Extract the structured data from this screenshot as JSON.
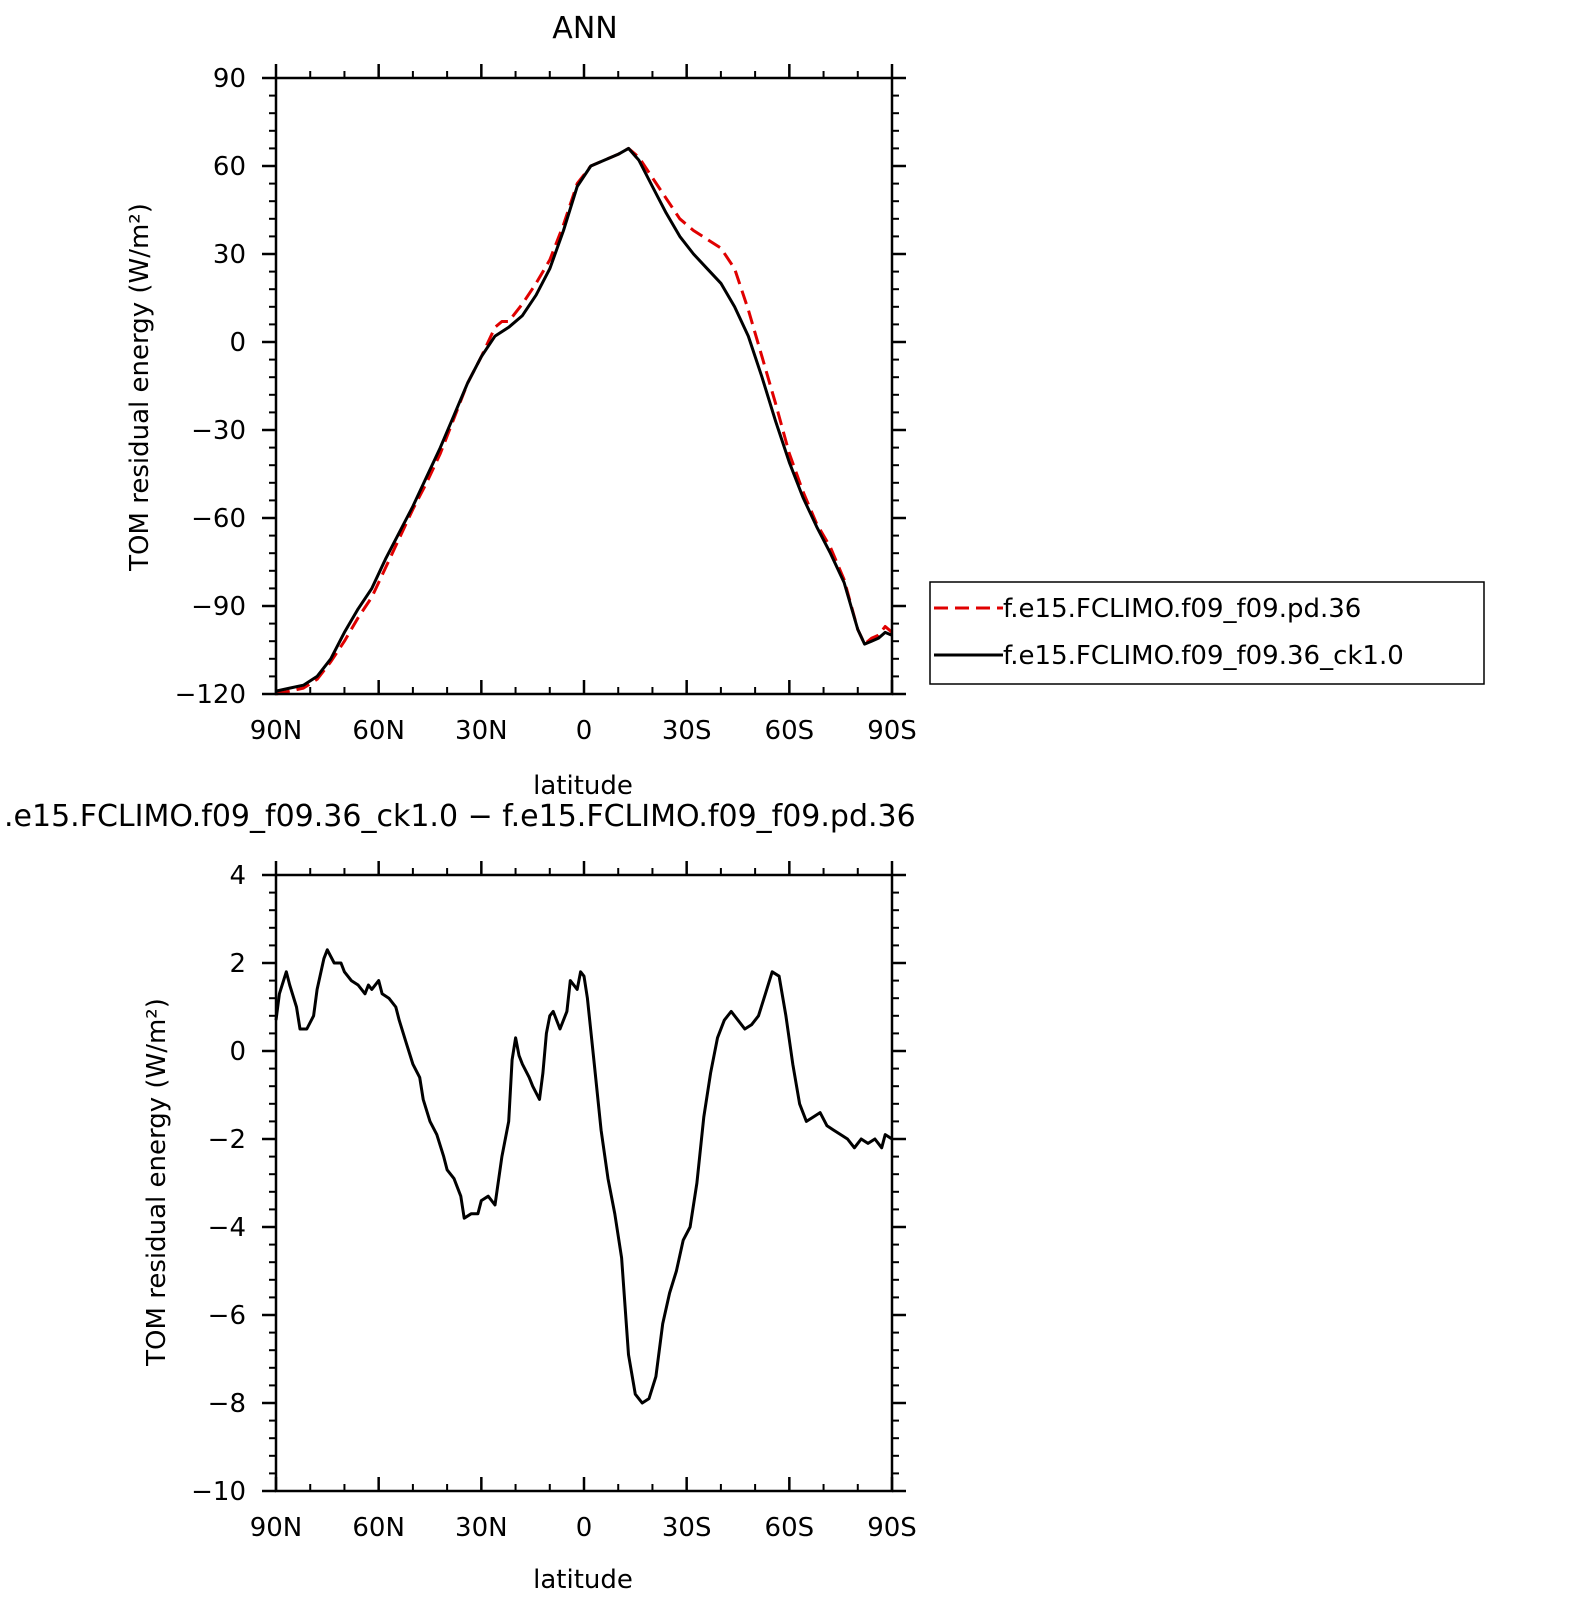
{
  "chart_data": [
    {
      "type": "line",
      "title": "ANN",
      "xlabel": "latitude",
      "ylabel": "TOM residual energy (W/m²)",
      "xlim": [
        90,
        -90
      ],
      "ylim": [
        -120,
        90
      ],
      "x_tick_values": [
        90,
        60,
        30,
        0,
        -30,
        -60,
        -90
      ],
      "x_tick_labels": [
        "90N",
        "60N",
        "30N",
        "0",
        "30S",
        "60S",
        "90S"
      ],
      "y_tick_values": [
        90,
        60,
        30,
        0,
        -30,
        -60,
        -90,
        -120
      ],
      "y_tick_labels": [
        "90",
        "60",
        "30",
        "0",
        "−30",
        "−60",
        "−90",
        "−120"
      ],
      "grid": false,
      "legend_position": "right",
      "series": [
        {
          "name": "f.e15.FCLIMO.f09_f09.pd.36",
          "color": "#e00000",
          "dash": "dashed",
          "points": [
            [
              90,
              -120
            ],
            [
              86,
              -119
            ],
            [
              82,
              -118
            ],
            [
              78,
              -115
            ],
            [
              74,
              -109
            ],
            [
              70,
              -102
            ],
            [
              66,
              -94
            ],
            [
              62,
              -87
            ],
            [
              58,
              -77
            ],
            [
              54,
              -67
            ],
            [
              50,
              -57
            ],
            [
              46,
              -48
            ],
            [
              42,
              -38
            ],
            [
              38,
              -26
            ],
            [
              34,
              -14
            ],
            [
              30,
              -5
            ],
            [
              26,
              5
            ],
            [
              24,
              7
            ],
            [
              22,
              7
            ],
            [
              18,
              13
            ],
            [
              14,
              20
            ],
            [
              10,
              28
            ],
            [
              6,
              40
            ],
            [
              2,
              54
            ],
            [
              -2,
              60
            ],
            [
              -6,
              62
            ],
            [
              -10,
              64
            ],
            [
              -13,
              66
            ],
            [
              -16,
              63
            ],
            [
              -20,
              56
            ],
            [
              -24,
              49
            ],
            [
              -28,
              42
            ],
            [
              -32,
              38
            ],
            [
              -36,
              35
            ],
            [
              -40,
              32
            ],
            [
              -44,
              25
            ],
            [
              -48,
              11
            ],
            [
              -52,
              -5
            ],
            [
              -56,
              -21
            ],
            [
              -60,
              -38
            ],
            [
              -64,
              -51
            ],
            [
              -68,
              -62
            ],
            [
              -72,
              -70
            ],
            [
              -76,
              -81
            ],
            [
              -80,
              -98
            ],
            [
              -82,
              -103
            ],
            [
              -84,
              -101
            ],
            [
              -86,
              -100
            ],
            [
              -88,
              -97
            ],
            [
              -90,
              -99
            ],
            [
              -92,
              -98
            ],
            [
              -94,
              -98
            ],
            [
              -96,
              -96
            ],
            [
              -98,
              -93
            ],
            [
              -100,
              -90
            ]
          ]
        },
        {
          "name": "f.e15.FCLIMO.f09_f09.36_ck1.0",
          "color": "#000000",
          "dash": "solid",
          "points": [
            [
              90,
              -119
            ],
            [
              86,
              -118
            ],
            [
              82,
              -117
            ],
            [
              78,
              -114
            ],
            [
              74,
              -108
            ],
            [
              70,
              -99
            ],
            [
              66,
              -91
            ],
            [
              62,
              -84
            ],
            [
              58,
              -74
            ],
            [
              54,
              -65
            ],
            [
              50,
              -56
            ],
            [
              46,
              -46
            ],
            [
              42,
              -36
            ],
            [
              38,
              -25
            ],
            [
              34,
              -14
            ],
            [
              30,
              -5
            ],
            [
              26,
              2
            ],
            [
              22,
              5
            ],
            [
              18,
              9
            ],
            [
              14,
              16
            ],
            [
              10,
              25
            ],
            [
              6,
              38
            ],
            [
              2,
              53
            ],
            [
              -2,
              60
            ],
            [
              -6,
              62
            ],
            [
              -10,
              64
            ],
            [
              -13,
              66
            ],
            [
              -16,
              62
            ],
            [
              -20,
              53
            ],
            [
              -24,
              44
            ],
            [
              -28,
              36
            ],
            [
              -32,
              30
            ],
            [
              -36,
              25
            ],
            [
              -40,
              20
            ],
            [
              -44,
              12
            ],
            [
              -48,
              2
            ],
            [
              -52,
              -12
            ],
            [
              -56,
              -27
            ],
            [
              -60,
              -41
            ],
            [
              -64,
              -53
            ],
            [
              -68,
              -63
            ],
            [
              -72,
              -72
            ],
            [
              -76,
              -82
            ],
            [
              -80,
              -98
            ],
            [
              -82,
              -103
            ],
            [
              -84,
              -102
            ],
            [
              -86,
              -101
            ],
            [
              -88,
              -99
            ],
            [
              -90,
              -100
            ],
            [
              -92,
              -100
            ],
            [
              -94,
              -101
            ],
            [
              -96,
              -99
            ],
            [
              -98,
              -95
            ],
            [
              -100,
              -91
            ]
          ]
        }
      ]
    },
    {
      "type": "line",
      "title": ".e15.FCLIMO.f09_f09.36_ck1.0 − f.e15.FCLIMO.f09_f09.pd.36",
      "xlabel": "latitude",
      "ylabel": "TOM residual energy (W/m²)",
      "xlim": [
        90,
        -90
      ],
      "ylim": [
        -10,
        4
      ],
      "x_tick_values": [
        90,
        60,
        30,
        0,
        -30,
        -60,
        -90
      ],
      "x_tick_labels": [
        "90N",
        "60N",
        "30N",
        "0",
        "30S",
        "60S",
        "90S"
      ],
      "y_tick_values": [
        4,
        2,
        0,
        -2,
        -4,
        -6,
        -8,
        -10
      ],
      "y_tick_labels": [
        "4",
        "2",
        "0",
        "−2",
        "−4",
        "−6",
        "−8",
        "−10"
      ],
      "grid": false,
      "series": [
        {
          "color": "#000000",
          "dash": "solid",
          "points": [
            [
              90,
              0.7
            ],
            [
              89,
              1.3
            ],
            [
              87,
              1.8
            ],
            [
              86,
              1.5
            ],
            [
              84,
              1.0
            ],
            [
              83,
              0.5
            ],
            [
              81,
              0.5
            ],
            [
              79,
              0.8
            ],
            [
              78,
              1.4
            ],
            [
              76,
              2.1
            ],
            [
              75,
              2.3
            ],
            [
              73,
              2.0
            ],
            [
              71,
              2.0
            ],
            [
              70,
              1.8
            ],
            [
              68,
              1.6
            ],
            [
              66,
              1.5
            ],
            [
              64,
              1.3
            ],
            [
              63,
              1.5
            ],
            [
              62,
              1.4
            ],
            [
              60,
              1.6
            ],
            [
              59,
              1.3
            ],
            [
              57,
              1.2
            ],
            [
              55,
              1.0
            ],
            [
              54,
              0.7
            ],
            [
              52,
              0.2
            ],
            [
              50,
              -0.3
            ],
            [
              48,
              -0.6
            ],
            [
              47,
              -1.1
            ],
            [
              45,
              -1.6
            ],
            [
              43,
              -1.9
            ],
            [
              41,
              -2.4
            ],
            [
              40,
              -2.7
            ],
            [
              38,
              -2.9
            ],
            [
              36,
              -3.3
            ],
            [
              35,
              -3.8
            ],
            [
              33,
              -3.7
            ],
            [
              31,
              -3.7
            ],
            [
              30,
              -3.4
            ],
            [
              28,
              -3.3
            ],
            [
              26,
              -3.5
            ],
            [
              24,
              -2.4
            ],
            [
              22,
              -1.6
            ],
            [
              21,
              -0.2
            ],
            [
              20,
              0.3
            ],
            [
              19,
              -0.1
            ],
            [
              18,
              -0.3
            ],
            [
              16,
              -0.6
            ],
            [
              15,
              -0.8
            ],
            [
              13,
              -1.1
            ],
            [
              12,
              -0.5
            ],
            [
              11,
              0.4
            ],
            [
              10,
              0.8
            ],
            [
              9,
              0.9
            ],
            [
              7,
              0.5
            ],
            [
              5,
              0.9
            ],
            [
              4,
              1.6
            ],
            [
              2,
              1.4
            ],
            [
              1,
              1.8
            ],
            [
              0,
              1.7
            ],
            [
              -1,
              1.2
            ],
            [
              -3,
              -0.3
            ],
            [
              -5,
              -1.8
            ],
            [
              -7,
              -2.9
            ],
            [
              -9,
              -3.7
            ],
            [
              -11,
              -4.7
            ],
            [
              -13,
              -6.9
            ],
            [
              -15,
              -7.8
            ],
            [
              -17,
              -8.0
            ],
            [
              -19,
              -7.9
            ],
            [
              -21,
              -7.4
            ],
            [
              -23,
              -6.2
            ],
            [
              -25,
              -5.5
            ],
            [
              -27,
              -5.0
            ],
            [
              -29,
              -4.3
            ],
            [
              -31,
              -4.0
            ],
            [
              -33,
              -3.0
            ],
            [
              -35,
              -1.5
            ],
            [
              -37,
              -0.5
            ],
            [
              -39,
              0.3
            ],
            [
              -41,
              0.7
            ],
            [
              -43,
              0.9
            ],
            [
              -45,
              0.7
            ],
            [
              -47,
              0.5
            ],
            [
              -49,
              0.6
            ],
            [
              -51,
              0.8
            ],
            [
              -53,
              1.3
            ],
            [
              -55,
              1.8
            ],
            [
              -57,
              1.7
            ],
            [
              -59,
              0.8
            ],
            [
              -61,
              -0.3
            ],
            [
              -63,
              -1.2
            ],
            [
              -65,
              -1.6
            ],
            [
              -67,
              -1.5
            ],
            [
              -69,
              -1.4
            ],
            [
              -71,
              -1.7
            ],
            [
              -73,
              -1.8
            ],
            [
              -75,
              -1.9
            ],
            [
              -77,
              -2.0
            ],
            [
              -79,
              -2.2
            ],
            [
              -81,
              -2.0
            ],
            [
              -83,
              -2.1
            ],
            [
              -85,
              -2.0
            ],
            [
              -87,
              -2.2
            ],
            [
              -88,
              -1.9
            ],
            [
              -90,
              -2.0
            ]
          ]
        }
      ]
    }
  ]
}
